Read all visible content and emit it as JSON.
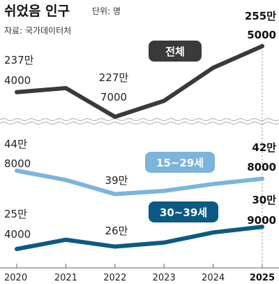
{
  "header": {
    "title": "쉬었음 인구",
    "unit": "단위: 명",
    "source": "자료: 국가데이터처"
  },
  "chart_data": [
    {
      "type": "line",
      "series": [
        {
          "name": "전체",
          "x": [
            2020,
            2021,
            2022,
            2023,
            2024,
            2025
          ],
          "values": [
            2374000,
            2390000,
            2277000,
            2340000,
            2470000,
            2555000
          ],
          "color": "#3a3a3a"
        }
      ],
      "labels": [
        {
          "text": [
            "237만",
            "4000"
          ],
          "x": 2020
        },
        {
          "text": [
            "227만",
            "7000"
          ],
          "x": 2022
        },
        {
          "text": [
            "255만",
            "5000"
          ],
          "x": 2025
        }
      ]
    },
    {
      "type": "line",
      "series": [
        {
          "name": "15~29세",
          "x": [
            2020,
            2021,
            2022,
            2023,
            2024,
            2025
          ],
          "values": [
            448000,
            425000,
            390000,
            398000,
            415000,
            428000
          ],
          "color": "#7cb4dc"
        },
        {
          "name": "30~39세",
          "x": [
            2020,
            2021,
            2022,
            2023,
            2024,
            2025
          ],
          "values": [
            254000,
            277000,
            260000,
            270000,
            295000,
            309000
          ],
          "color": "#0c5a84"
        }
      ],
      "labels": [
        {
          "series": "15~29세",
          "text": [
            "44만",
            "8000"
          ],
          "x": 2020
        },
        {
          "series": "15~29세",
          "text": [
            "39만"
          ],
          "x": 2022
        },
        {
          "series": "15~29세",
          "text": [
            "42만",
            "8000"
          ],
          "x": 2025
        },
        {
          "series": "30~39세",
          "text": [
            "25만",
            "4000"
          ],
          "x": 2020
        },
        {
          "series": "30~39세",
          "text": [
            "26만"
          ],
          "x": 2022
        },
        {
          "series": "30~39세",
          "text": [
            "30만",
            "9000"
          ],
          "x": 2025
        }
      ]
    }
  ],
  "xaxis": {
    "ticks": [
      "2020",
      "2021",
      "2022",
      "2023",
      "2024",
      "2025"
    ],
    "highlight": "2025"
  },
  "colors": {
    "total": "#3a3a3a",
    "age15_29": "#7cb4dc",
    "age30_39": "#0c5a84",
    "axis": "#888888"
  }
}
